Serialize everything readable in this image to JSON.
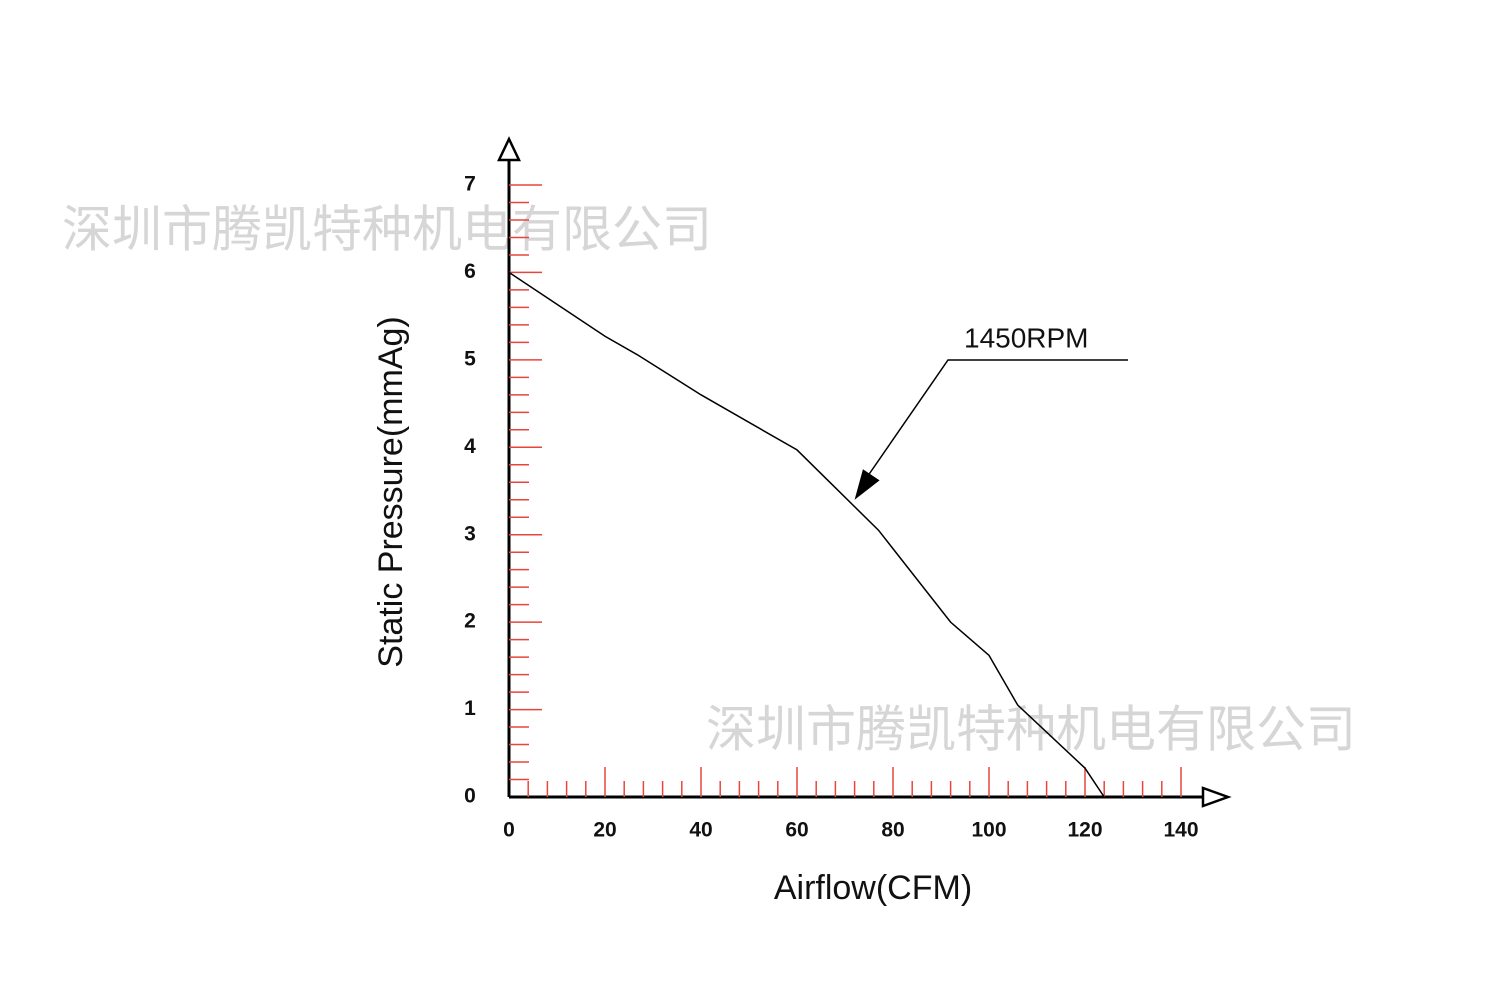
{
  "chart_data": {
    "type": "line",
    "xlabel": "Airflow(CFM)",
    "ylabel": "Static Pressure(mmAg)",
    "x": [
      0,
      20,
      27,
      40,
      60,
      77,
      92,
      100,
      106,
      120,
      124
    ],
    "series": [
      {
        "name": "1450RPM",
        "color": "#000000",
        "values": [
          6,
          5.27,
          5.05,
          4.6,
          3.97,
          3.05,
          2,
          1.62,
          1.05,
          0.33,
          0
        ]
      }
    ],
    "xlim": [
      0,
      140
    ],
    "xticks": [
      0,
      20,
      40,
      60,
      80,
      100,
      120,
      140
    ],
    "ylim": [
      0,
      7
    ],
    "yticks": [
      0,
      1,
      2,
      3,
      4,
      5,
      6,
      7
    ],
    "tick_color": "#e8463c",
    "annotations": [
      {
        "text": "1450RPM",
        "x": 72,
        "y": 3.4
      }
    ],
    "watermarks": [
      "深圳市腾凯特种机电有限公司",
      "深圳市腾凯特种机电有限公司"
    ]
  }
}
